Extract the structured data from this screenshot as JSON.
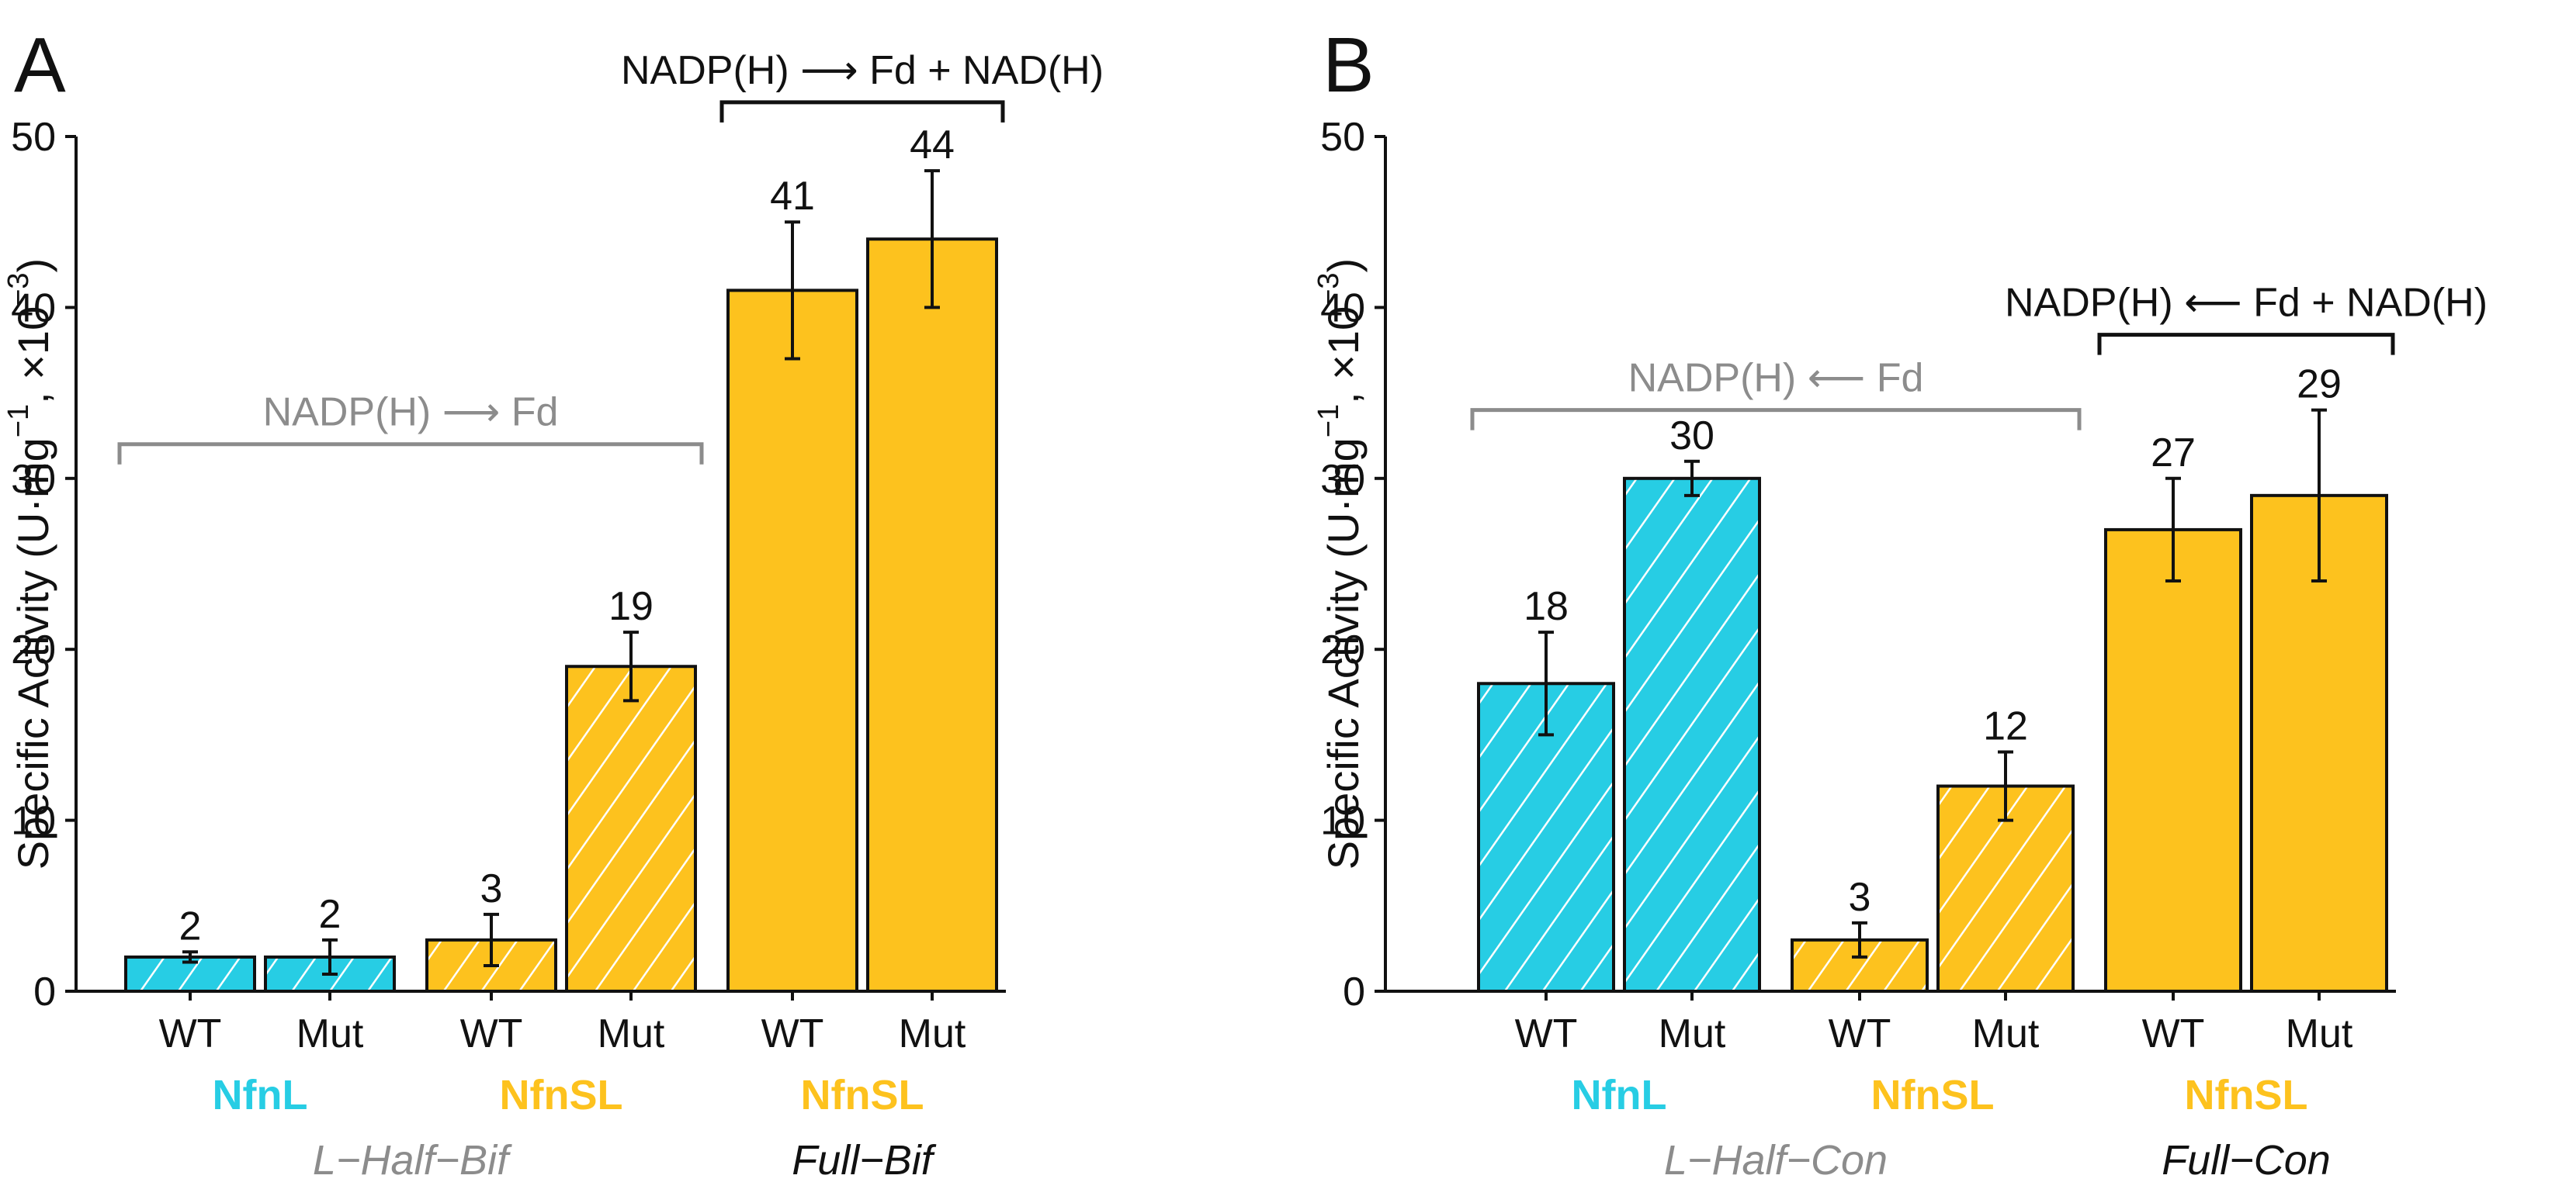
{
  "colors": {
    "cyan": "#27cde4",
    "gold": "#fdc21e",
    "gray": "#8c8c8c",
    "black": "#111111",
    "hatch": "#ffffff"
  },
  "chart_data": [
    {
      "type": "bar",
      "panel_label": "A",
      "ylabel": "Specific Activity (U·mg−1, ×10−3)",
      "ylim": [
        0,
        50
      ],
      "yticks": [
        "0",
        "10",
        "20",
        "30",
        "40",
        "50"
      ],
      "grid": false,
      "categories": [
        "WT",
        "Mut",
        "WT",
        "Mut",
        "WT",
        "Mut"
      ],
      "values": [
        2,
        2,
        3,
        19,
        41,
        44
      ],
      "errors": [
        0.3,
        1.0,
        1.5,
        2.0,
        4.0,
        4.0
      ],
      "value_labels": [
        "2",
        "2",
        "3",
        "19",
        "41",
        "44"
      ],
      "bar_fill": [
        "cyan",
        "cyan",
        "gold",
        "gold",
        "gold",
        "gold"
      ],
      "bar_hatched": [
        true,
        true,
        true,
        true,
        false,
        false
      ],
      "proteins": [
        {
          "label": "NfnL",
          "color": "cyan",
          "bars": [
            0,
            1
          ]
        },
        {
          "label": "NfnSL",
          "color": "gold",
          "bars": [
            2,
            3
          ]
        },
        {
          "label": "NfnSL",
          "color": "gold",
          "bars": [
            4,
            5
          ]
        }
      ],
      "conditions": [
        {
          "label": "L−Half−Bif",
          "color": "gray",
          "bars": [
            0,
            3
          ]
        },
        {
          "label": "Full−Bif",
          "color": "black",
          "bars": [
            4,
            5
          ]
        }
      ],
      "brackets": [
        {
          "label": "NADP(H) ⟶ Fd",
          "color": "gray",
          "bars": [
            0,
            3
          ],
          "level": 32
        },
        {
          "label": "NADP(H) ⟶ Fd + NAD(H)",
          "color": "black",
          "bars": [
            4,
            5
          ],
          "level": 52
        }
      ]
    },
    {
      "type": "bar",
      "panel_label": "B",
      "ylabel": "Specific Activity (U·mg−1, ×10−3)",
      "ylim": [
        0,
        50
      ],
      "yticks": [
        "0",
        "10",
        "20",
        "30",
        "40",
        "50"
      ],
      "grid": false,
      "categories": [
        "WT",
        "Mut",
        "WT",
        "Mut",
        "WT",
        "Mut"
      ],
      "values": [
        18,
        30,
        3,
        12,
        27,
        29
      ],
      "errors": [
        3.0,
        1.0,
        1.0,
        2.0,
        3.0,
        5.0
      ],
      "value_labels": [
        "18",
        "30",
        "3",
        "12",
        "27",
        "29"
      ],
      "bar_fill": [
        "cyan",
        "cyan",
        "gold",
        "gold",
        "gold",
        "gold"
      ],
      "bar_hatched": [
        true,
        true,
        true,
        true,
        false,
        false
      ],
      "proteins": [
        {
          "label": "NfnL",
          "color": "cyan",
          "bars": [
            0,
            1
          ]
        },
        {
          "label": "NfnSL",
          "color": "gold",
          "bars": [
            2,
            3
          ]
        },
        {
          "label": "NfnSL",
          "color": "gold",
          "bars": [
            4,
            5
          ]
        }
      ],
      "conditions": [
        {
          "label": "L−Half−Con",
          "color": "gray",
          "bars": [
            0,
            3
          ]
        },
        {
          "label": "Full−Con",
          "color": "black",
          "bars": [
            4,
            5
          ]
        }
      ],
      "brackets": [
        {
          "label": "NADP(H) ⟵ Fd",
          "color": "gray",
          "bars": [
            0,
            3
          ],
          "level": 34
        },
        {
          "label": "NADP(H) ⟵ Fd + NAD(H)",
          "color": "black",
          "bars": [
            4,
            5
          ],
          "level": 38.4
        }
      ]
    }
  ]
}
